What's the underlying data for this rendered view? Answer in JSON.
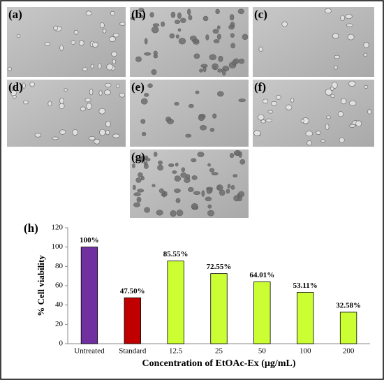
{
  "panels": {
    "labels": [
      "(a)",
      "(b)",
      "(c)",
      "(d)",
      "(e)",
      "(f)",
      "(g)"
    ]
  },
  "chart_data": {
    "type": "bar",
    "label": "(h)",
    "categories": [
      "Untreated",
      "Standard",
      "12.5",
      "25",
      "50",
      "100",
      "200"
    ],
    "values": [
      100,
      47.5,
      85.55,
      72.55,
      64.01,
      53.11,
      32.58
    ],
    "value_labels": [
      "100%",
      "47.50%",
      "85.55%",
      "72.55%",
      "64.01%",
      "53.11%",
      "32.58%"
    ],
    "colors": [
      "#7030a0",
      "#c00000",
      "#ccff33",
      "#ccff33",
      "#ccff33",
      "#ccff33",
      "#ccff33"
    ],
    "ylabel": "% Cell viability",
    "xlabel": "Concentration of EtOAc-Ex (µg/mL)",
    "ylim": [
      0,
      120
    ],
    "yticks": [
      0,
      20,
      40,
      60,
      80,
      100,
      120
    ],
    "grid": false
  }
}
